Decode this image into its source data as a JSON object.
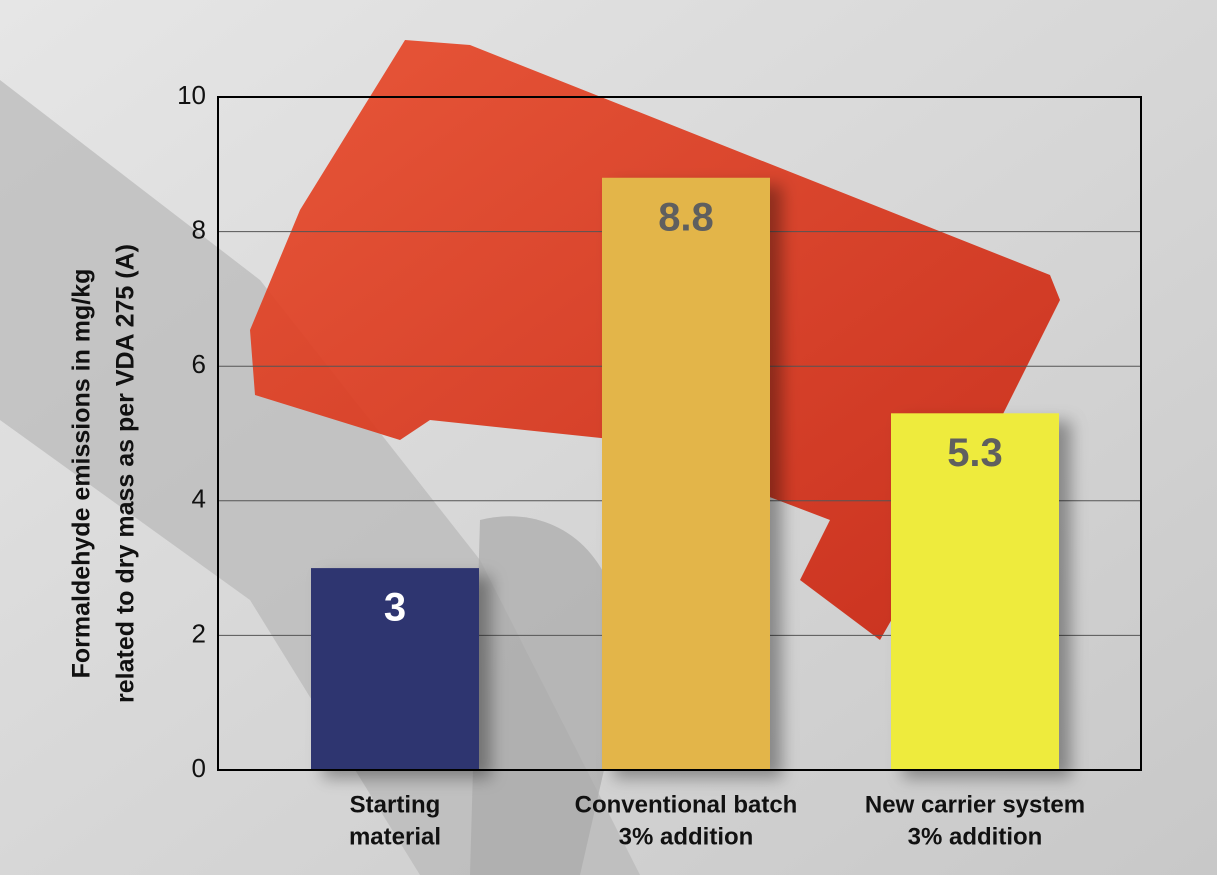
{
  "chart_data": {
    "type": "bar",
    "ylabel": [
      "Formaldehyde emissions in mg/kg",
      "related to dry mass as per VDA 275 (A)"
    ],
    "categories": [
      [
        "Starting",
        "material"
      ],
      [
        "Conventional batch",
        "3% addition"
      ],
      [
        "New carrier system",
        "3% addition"
      ]
    ],
    "values": [
      3,
      8.8,
      5.3
    ],
    "colors": [
      "#2e3570",
      "#e3b54a",
      "#eeeb3e"
    ],
    "value_label_colors": [
      "#ffffff",
      "#5f5f5f",
      "#5f5f5f"
    ],
    "ylim": [
      0,
      10
    ],
    "yticks": [
      0,
      2,
      4,
      6,
      8,
      10
    ],
    "grid": true
  }
}
